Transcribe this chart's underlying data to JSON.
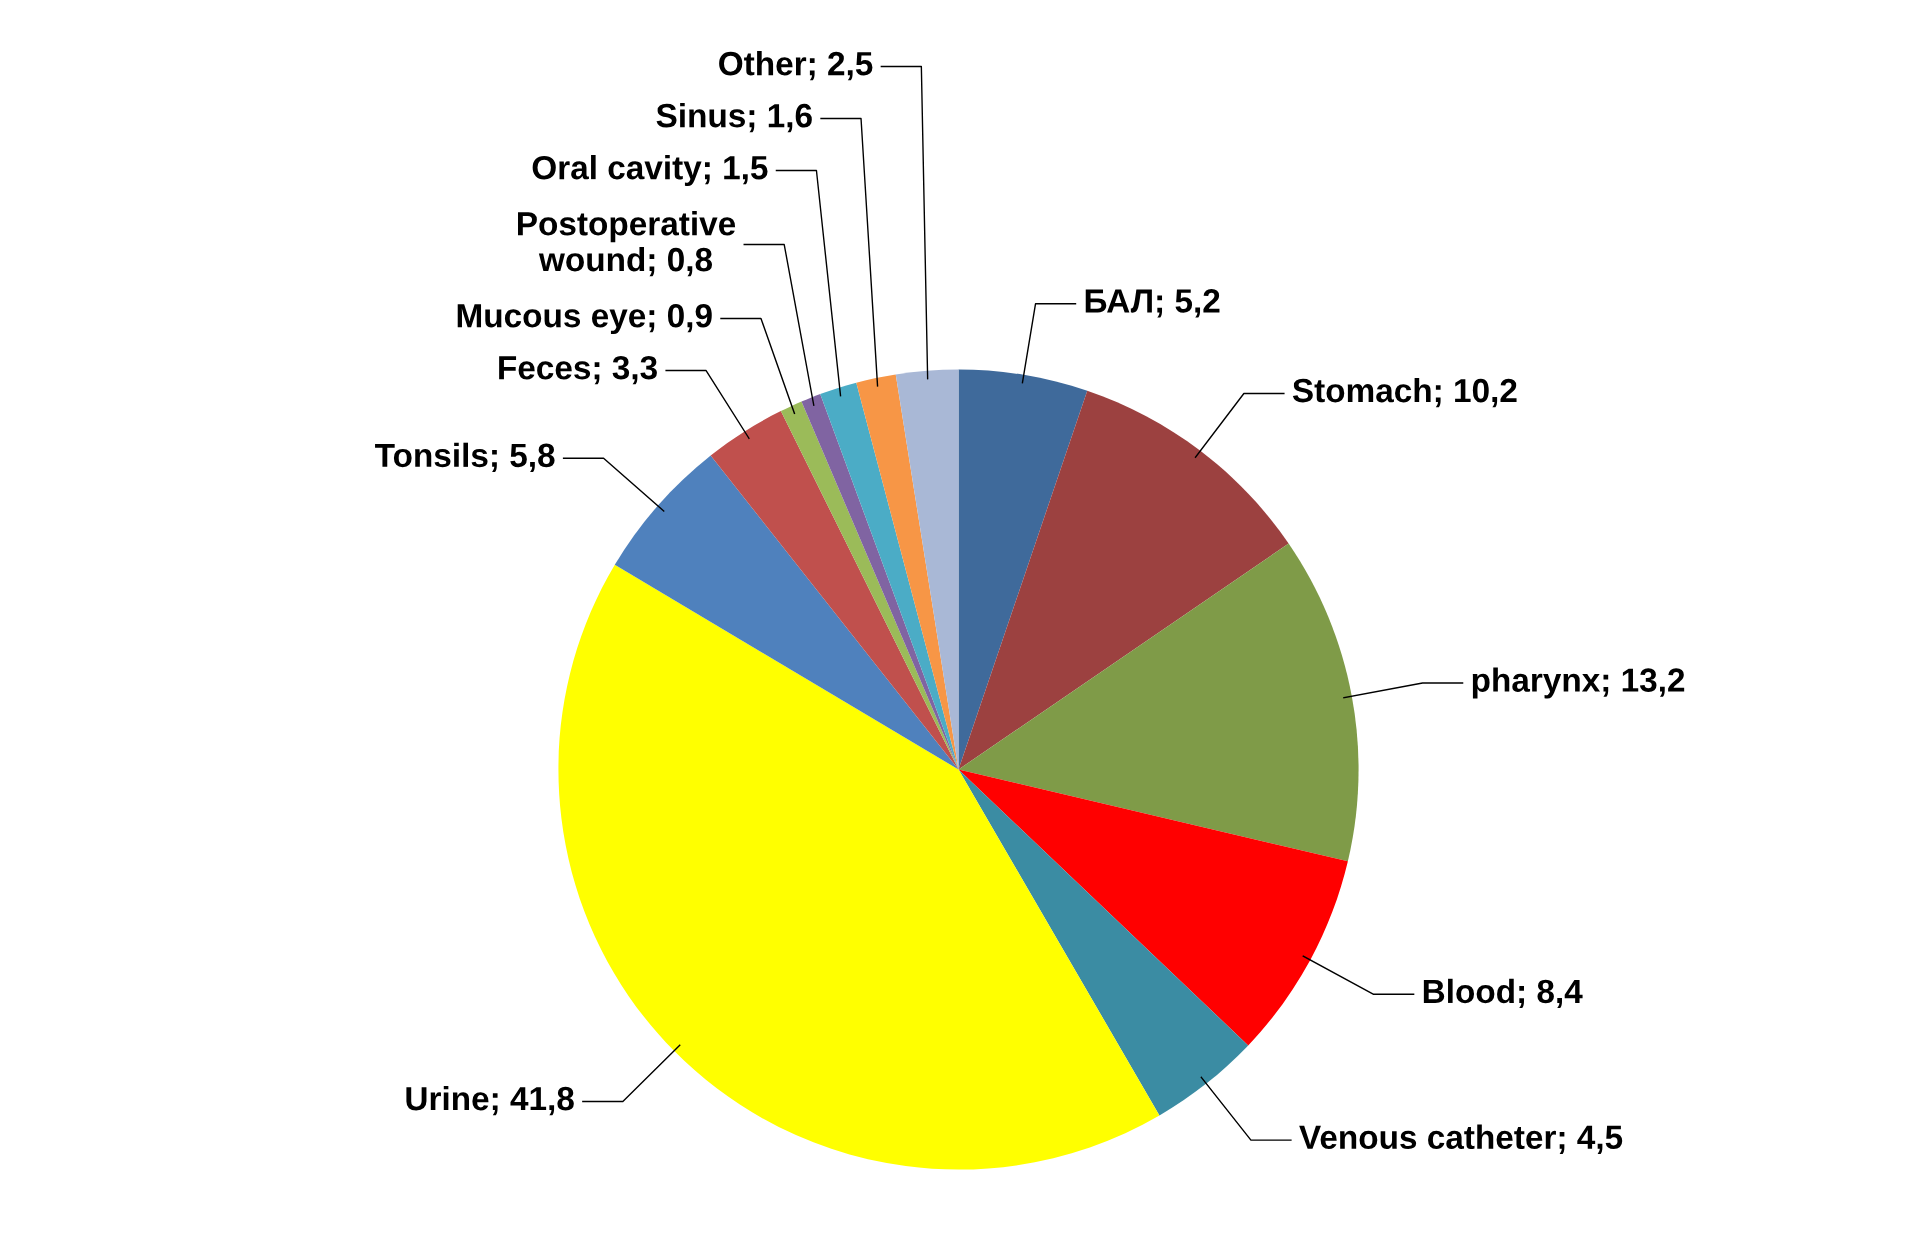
{
  "chart_data": {
    "type": "pie",
    "legend": false,
    "categories": [
      "БАЛ",
      "Stomach",
      "pharynx",
      "Blood",
      "Venous catheter",
      "Urine",
      "Tonsils",
      "Feces",
      "Mucous eye",
      "Postoperative wound",
      "Oral cavity",
      "Sinus",
      "Other"
    ],
    "values": [
      5.2,
      10.2,
      13.2,
      8.4,
      4.5,
      41.8,
      5.8,
      3.3,
      0.9,
      0.8,
      1.5,
      1.6,
      2.5
    ],
    "value_labels": [
      "5,2",
      "10,2",
      "13,2",
      "8,4",
      "4,5",
      "41,8",
      "5,8",
      "3,3",
      "0,9",
      "0,8",
      "1,5",
      "1,6",
      "2,5"
    ],
    "colors": [
      "#3f6a9b",
      "#9c4140",
      "#7f9b48",
      "#ff0000",
      "#3b8ca3",
      "#ffff00",
      "#4f81bd",
      "#c0504d",
      "#9bbb59",
      "#8064a2",
      "#4bacc6",
      "#f79646",
      "#a9b8d6"
    ]
  }
}
